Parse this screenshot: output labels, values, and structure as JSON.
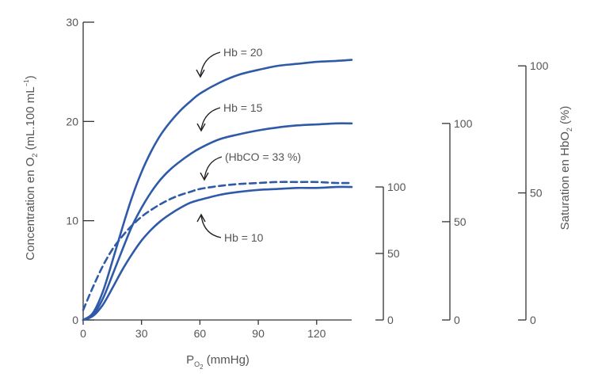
{
  "chart_data": {
    "type": "line",
    "x_ticks": [
      "0",
      "30",
      "60",
      "90",
      "120"
    ],
    "xlim": [
      0,
      138
    ],
    "ylim": [
      0,
      30
    ],
    "y_ticks": [
      "0",
      "10",
      "20",
      "30"
    ],
    "xlabel": {
      "main": "P",
      "sub": "O",
      "sub2": "2",
      "rest": " (mmHg)"
    },
    "ylabel": {
      "main": "Concentration en O",
      "sub": "2",
      "mid": " (mL.100 mL",
      "sup": "−1",
      "end": ")"
    },
    "series": [
      {
        "name": "Hb = 20",
        "style": "solid",
        "color": "#2f5aa8",
        "x": [
          0,
          5,
          10,
          15,
          20,
          25,
          30,
          35,
          40,
          45,
          50,
          55,
          60,
          70,
          80,
          90,
          100,
          110,
          120,
          130,
          138
        ],
        "y": [
          0,
          0.7,
          2.8,
          5.9,
          9.2,
          12.3,
          14.9,
          17.0,
          18.7,
          20.0,
          21.1,
          22.0,
          22.8,
          23.9,
          24.7,
          25.2,
          25.6,
          25.8,
          26.0,
          26.1,
          26.2
        ]
      },
      {
        "name": "Hb = 15",
        "style": "solid",
        "color": "#2f5aa8",
        "x": [
          0,
          5,
          10,
          15,
          20,
          25,
          30,
          35,
          40,
          45,
          50,
          55,
          60,
          70,
          80,
          90,
          100,
          110,
          120,
          130,
          138
        ],
        "y": [
          0,
          0.5,
          2.1,
          4.5,
          7.0,
          9.4,
          11.3,
          12.9,
          14.2,
          15.2,
          16.0,
          16.7,
          17.3,
          18.2,
          18.7,
          19.1,
          19.4,
          19.6,
          19.7,
          19.8,
          19.8
        ]
      },
      {
        "name": "(HbCO = 33 %)",
        "style": "dashed",
        "color": "#2f5aa8",
        "x": [
          0,
          5,
          10,
          15,
          20,
          25,
          30,
          35,
          40,
          45,
          50,
          55,
          60,
          70,
          80,
          90,
          100,
          110,
          120,
          130,
          138
        ],
        "y": [
          1.0,
          3.3,
          5.4,
          7.1,
          8.4,
          9.5,
          10.4,
          11.1,
          11.7,
          12.2,
          12.6,
          12.9,
          13.2,
          13.5,
          13.7,
          13.8,
          13.9,
          13.9,
          13.9,
          13.8,
          13.8
        ]
      },
      {
        "name": "Hb = 10",
        "style": "solid",
        "color": "#2f5aa8",
        "x": [
          0,
          5,
          10,
          15,
          20,
          25,
          30,
          35,
          40,
          45,
          50,
          55,
          60,
          70,
          80,
          90,
          100,
          110,
          120,
          130,
          138
        ],
        "y": [
          0,
          0.4,
          1.5,
          3.2,
          5.0,
          6.6,
          8.0,
          9.1,
          10.0,
          10.7,
          11.3,
          11.8,
          12.1,
          12.6,
          12.9,
          13.1,
          13.2,
          13.3,
          13.3,
          13.4,
          13.4
        ]
      }
    ],
    "saturation_axes": [
      {
        "series": "Hb = 10",
        "full_scale": 13.4,
        "ticks": [
          "0",
          "50",
          "100"
        ]
      },
      {
        "series": "Hb = 15",
        "full_scale": 19.8,
        "ticks": [
          "0",
          "50",
          "100"
        ]
      },
      {
        "series": "Hb = 20",
        "full_scale": 25.6,
        "ticks": [
          "0",
          "50",
          "100"
        ]
      }
    ],
    "right_label": {
      "main": "Saturation en HbO",
      "sub": "2",
      "end": " (%)"
    },
    "grid": false,
    "legend": "none"
  }
}
